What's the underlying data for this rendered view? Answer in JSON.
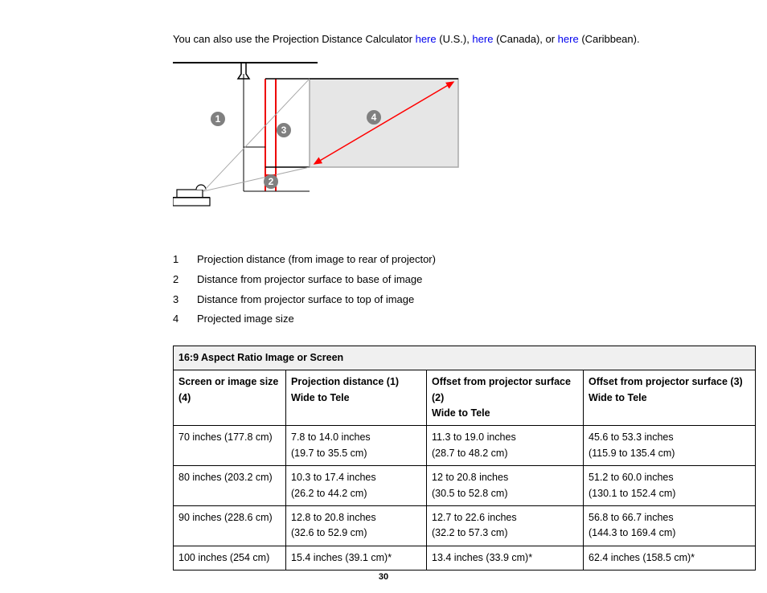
{
  "intro": {
    "pre": "You can also use the Projection Distance Calculator ",
    "link1": "here",
    "seg1": " (U.S.), ",
    "link2": "here",
    "seg2": " (Canada), or ",
    "link3": "here",
    "seg3": " (Caribbean)."
  },
  "diagram": {
    "callouts": {
      "c1": "1",
      "c2": "2",
      "c3": "3",
      "c4": "4"
    },
    "colors": {
      "stroke": "#000000",
      "screen_fill": "#e6e6e6",
      "screen_stroke": "#a8a8a8",
      "marker_red": "#ee0000",
      "arrow_red": "#ff0000",
      "callout_fill": "#808080",
      "callout_text": "#ffffff"
    }
  },
  "legend": [
    {
      "n": "1",
      "t": "Projection distance (from image to rear of projector)"
    },
    {
      "n": "2",
      "t": "Distance from projector surface to base of image"
    },
    {
      "n": "3",
      "t": "Distance from projector surface to top of image"
    },
    {
      "n": "4",
      "t": "Projected image size"
    }
  ],
  "table": {
    "title": "16:9 Aspect Ratio Image or Screen",
    "columns": [
      {
        "h": "Screen or image size (4)",
        "sub": ""
      },
      {
        "h": "Projection distance (1)",
        "sub": "Wide to Tele"
      },
      {
        "h": "Offset from projector surface (2)",
        "sub": "Wide to Tele"
      },
      {
        "h": "Offset from projector surface (3)",
        "sub": "Wide to Tele"
      }
    ],
    "col_widths": [
      "140px",
      "175px",
      "195px",
      ""
    ],
    "rows": [
      [
        "70 inches (177.8 cm)",
        "7.8 to 14.0 inches\n(19.7 to 35.5 cm)",
        "11.3 to 19.0 inches\n(28.7 to 48.2 cm)",
        "45.6 to 53.3 inches\n(115.9 to 135.4 cm)"
      ],
      [
        "80 inches (203.2 cm)",
        "10.3 to 17.4 inches\n(26.2 to 44.2 cm)",
        "12 to 20.8 inches\n(30.5 to 52.8 cm)",
        "51.2 to 60.0 inches\n(130.1 to 152.4 cm)"
      ],
      [
        "90 inches (228.6 cm)",
        "12.8 to 20.8 inches\n(32.6 to 52.9 cm)",
        "12.7 to 22.6 inches\n(32.2 to 57.3 cm)",
        "56.8 to 66.7 inches\n(144.3 to 169.4 cm)"
      ],
      [
        "100 inches (254 cm)",
        "15.4 inches (39.1 cm)*",
        "13.4 inches (33.9 cm)*",
        "62.4 inches (158.5 cm)*"
      ]
    ]
  },
  "page_number": "30"
}
